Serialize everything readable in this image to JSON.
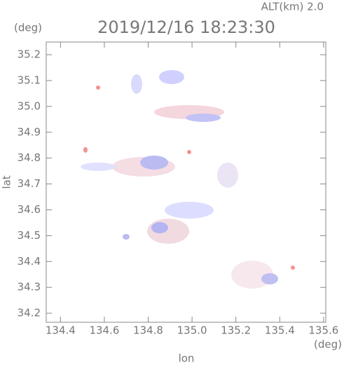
{
  "chart_data": {
    "type": "map",
    "title": "2019/12/16 18:23:30",
    "annotation": "ALT(km)  2.0",
    "x_label": "lon",
    "y_label": "lat",
    "x_unit": "(deg)",
    "y_unit": "(deg)",
    "xlim": [
      134.335,
      135.61
    ],
    "ylim": [
      34.165,
      35.249
    ],
    "xticks": [
      {
        "value": 134.4,
        "label": "134.4"
      },
      {
        "value": 134.6,
        "label": "134.6"
      },
      {
        "value": 134.8,
        "label": "134.8"
      },
      {
        "value": 135.0,
        "label": "135.0"
      },
      {
        "value": 135.2,
        "label": "135.2"
      },
      {
        "value": 135.4,
        "label": "135.4"
      },
      {
        "value": 135.6,
        "label": "135.6"
      }
    ],
    "yticks": [
      {
        "value": 34.2,
        "label": "34.2"
      },
      {
        "value": 34.3,
        "label": "34.3"
      },
      {
        "value": 34.4,
        "label": "34.4"
      },
      {
        "value": 34.5,
        "label": "34.5"
      },
      {
        "value": 34.6,
        "label": "34.6"
      },
      {
        "value": 34.7,
        "label": "34.7"
      },
      {
        "value": 34.8,
        "label": "34.8"
      },
      {
        "value": 34.9,
        "label": "34.9"
      },
      {
        "value": 35.0,
        "label": "35.0"
      },
      {
        "value": 35.1,
        "label": "35.1"
      },
      {
        "value": 35.2,
        "label": "35.2"
      }
    ]
  }
}
